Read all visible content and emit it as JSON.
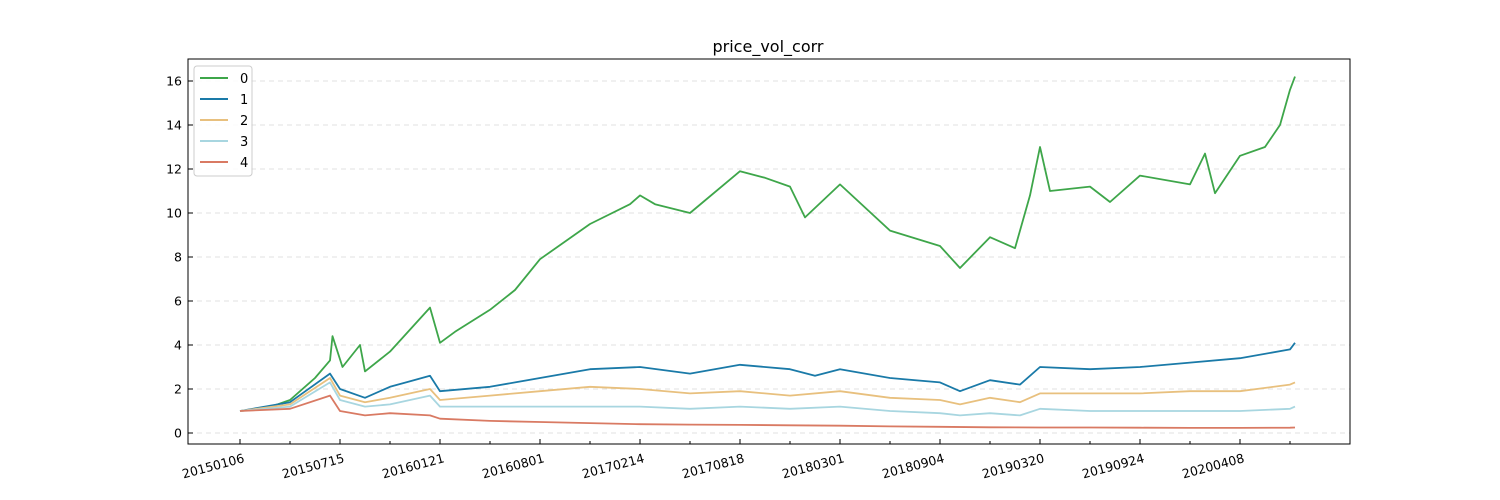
{
  "chart_data": {
    "type": "line",
    "title": "price_vol_corr",
    "xlabel": "",
    "ylabel": "",
    "ylim": [
      -0.5,
      17.0
    ],
    "yticks": [
      0,
      2,
      4,
      6,
      8,
      10,
      12,
      14,
      16
    ],
    "xticks": [
      "20150106",
      "20150715",
      "20160121",
      "20160801",
      "20170214",
      "20170818",
      "20180301",
      "20180904",
      "20190320",
      "20190924",
      "20200408"
    ],
    "grid": "horizontal-dashed",
    "legend_position": "top-left",
    "x_index_range": [
      0,
      21
    ],
    "series": [
      {
        "name": "0",
        "color": "#3ea64a",
        "points": [
          [
            0,
            1.0
          ],
          [
            0.5,
            1.1
          ],
          [
            1,
            1.5
          ],
          [
            1.5,
            2.5
          ],
          [
            1.8,
            3.3
          ],
          [
            1.85,
            4.4
          ],
          [
            2.05,
            3.0
          ],
          [
            2.4,
            4.0
          ],
          [
            2.5,
            2.8
          ],
          [
            3,
            3.7
          ],
          [
            3.8,
            5.7
          ],
          [
            4,
            4.1
          ],
          [
            4.3,
            4.6
          ],
          [
            5,
            5.6
          ],
          [
            5.5,
            6.5
          ],
          [
            6,
            7.9
          ],
          [
            7,
            9.5
          ],
          [
            7.8,
            10.4
          ],
          [
            8,
            10.8
          ],
          [
            8.3,
            10.4
          ],
          [
            9,
            10.0
          ],
          [
            10,
            11.9
          ],
          [
            10.5,
            11.6
          ],
          [
            11,
            11.2
          ],
          [
            11.3,
            9.8
          ],
          [
            12,
            11.3
          ],
          [
            13,
            9.2
          ],
          [
            14,
            8.5
          ],
          [
            14.4,
            7.5
          ],
          [
            15,
            8.9
          ],
          [
            15.5,
            8.4
          ],
          [
            15.8,
            10.8
          ],
          [
            16,
            13.0
          ],
          [
            16.2,
            11.0
          ],
          [
            17,
            11.2
          ],
          [
            17.4,
            10.5
          ],
          [
            18,
            11.7
          ],
          [
            19,
            11.3
          ],
          [
            19.3,
            12.7
          ],
          [
            19.5,
            10.9
          ],
          [
            20,
            12.6
          ],
          [
            20.5,
            13.0
          ],
          [
            20.8,
            14.0
          ],
          [
            21,
            15.6
          ],
          [
            21.1,
            16.2
          ]
        ]
      },
      {
        "name": "1",
        "color": "#1a7aa8",
        "points": [
          [
            0,
            1.0
          ],
          [
            1,
            1.4
          ],
          [
            1.8,
            2.7
          ],
          [
            2,
            2.0
          ],
          [
            2.5,
            1.6
          ],
          [
            3,
            2.1
          ],
          [
            3.8,
            2.6
          ],
          [
            4,
            1.9
          ],
          [
            5,
            2.1
          ],
          [
            6,
            2.5
          ],
          [
            7,
            2.9
          ],
          [
            8,
            3.0
          ],
          [
            9,
            2.7
          ],
          [
            10,
            3.1
          ],
          [
            11,
            2.9
          ],
          [
            11.5,
            2.6
          ],
          [
            12,
            2.9
          ],
          [
            13,
            2.5
          ],
          [
            14,
            2.3
          ],
          [
            14.4,
            1.9
          ],
          [
            15,
            2.4
          ],
          [
            15.6,
            2.2
          ],
          [
            16,
            3.0
          ],
          [
            17,
            2.9
          ],
          [
            18,
            3.0
          ],
          [
            19,
            3.2
          ],
          [
            20,
            3.4
          ],
          [
            21,
            3.8
          ],
          [
            21.1,
            4.1
          ]
        ]
      },
      {
        "name": "2",
        "color": "#e8c07e",
        "points": [
          [
            0,
            1.0
          ],
          [
            1,
            1.3
          ],
          [
            1.8,
            2.5
          ],
          [
            2,
            1.7
          ],
          [
            2.5,
            1.4
          ],
          [
            3,
            1.6
          ],
          [
            3.8,
            2.0
          ],
          [
            4,
            1.5
          ],
          [
            5,
            1.7
          ],
          [
            6,
            1.9
          ],
          [
            7,
            2.1
          ],
          [
            8,
            2.0
          ],
          [
            9,
            1.8
          ],
          [
            10,
            1.9
          ],
          [
            11,
            1.7
          ],
          [
            12,
            1.9
          ],
          [
            13,
            1.6
          ],
          [
            14,
            1.5
          ],
          [
            14.4,
            1.3
          ],
          [
            15,
            1.6
          ],
          [
            15.6,
            1.4
          ],
          [
            16,
            1.8
          ],
          [
            17,
            1.8
          ],
          [
            18,
            1.8
          ],
          [
            19,
            1.9
          ],
          [
            20,
            1.9
          ],
          [
            21,
            2.2
          ],
          [
            21.1,
            2.3
          ]
        ]
      },
      {
        "name": "3",
        "color": "#a8d6e0",
        "points": [
          [
            0,
            1.0
          ],
          [
            1,
            1.2
          ],
          [
            1.8,
            2.3
          ],
          [
            2,
            1.5
          ],
          [
            2.5,
            1.2
          ],
          [
            3,
            1.3
          ],
          [
            3.8,
            1.7
          ],
          [
            4,
            1.2
          ],
          [
            5,
            1.2
          ],
          [
            6,
            1.2
          ],
          [
            7,
            1.2
          ],
          [
            8,
            1.2
          ],
          [
            9,
            1.1
          ],
          [
            10,
            1.2
          ],
          [
            11,
            1.1
          ],
          [
            12,
            1.2
          ],
          [
            13,
            1.0
          ],
          [
            14,
            0.9
          ],
          [
            14.4,
            0.8
          ],
          [
            15,
            0.9
          ],
          [
            15.6,
            0.8
          ],
          [
            16,
            1.1
          ],
          [
            17,
            1.0
          ],
          [
            18,
            1.0
          ],
          [
            19,
            1.0
          ],
          [
            20,
            1.0
          ],
          [
            21,
            1.1
          ],
          [
            21.1,
            1.2
          ]
        ]
      },
      {
        "name": "4",
        "color": "#d97a63",
        "points": [
          [
            0,
            1.0
          ],
          [
            1,
            1.1
          ],
          [
            1.8,
            1.7
          ],
          [
            2,
            1.0
          ],
          [
            2.5,
            0.8
          ],
          [
            3,
            0.9
          ],
          [
            3.8,
            0.8
          ],
          [
            4,
            0.65
          ],
          [
            5,
            0.55
          ],
          [
            6,
            0.5
          ],
          [
            7,
            0.45
          ],
          [
            8,
            0.4
          ],
          [
            9,
            0.38
          ],
          [
            10,
            0.37
          ],
          [
            11,
            0.35
          ],
          [
            12,
            0.33
          ],
          [
            13,
            0.3
          ],
          [
            14,
            0.28
          ],
          [
            15,
            0.26
          ],
          [
            16,
            0.25
          ],
          [
            17,
            0.25
          ],
          [
            18,
            0.24
          ],
          [
            19,
            0.23
          ],
          [
            20,
            0.23
          ],
          [
            21,
            0.24
          ],
          [
            21.1,
            0.25
          ]
        ]
      }
    ]
  }
}
